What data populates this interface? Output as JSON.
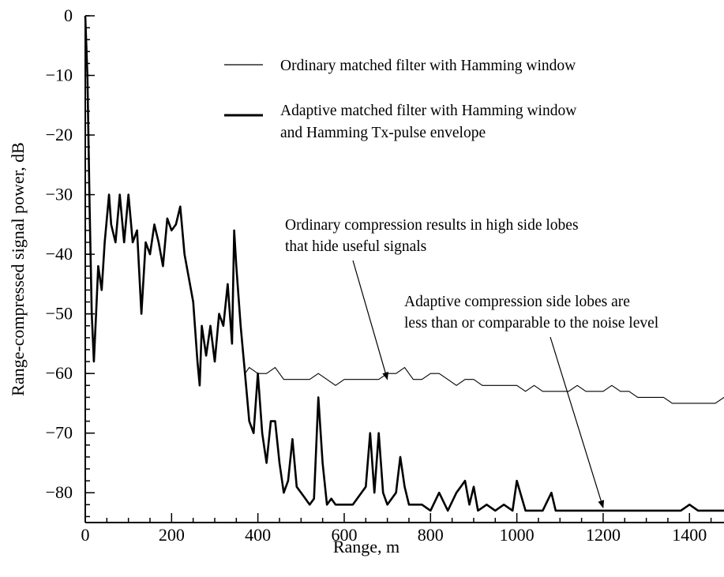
{
  "chart_data": {
    "type": "line",
    "title": "",
    "xlabel": "Range, m",
    "ylabel": "Range-compressed signal power, dB",
    "xlim": [
      0,
      1480
    ],
    "ylim": [
      -85,
      0
    ],
    "x_ticks": [
      0,
      200,
      400,
      600,
      800,
      1000,
      1200,
      1400
    ],
    "x_tick_labels": [
      "0",
      "200",
      "400",
      "600",
      "800",
      "1000",
      "1200",
      "1400"
    ],
    "y_ticks": [
      0,
      -10,
      -20,
      -30,
      -40,
      -50,
      -60,
      -70,
      -80
    ],
    "y_tick_labels": [
      "0",
      "−10",
      "−20",
      "−30",
      "−40",
      "−50",
      "−60",
      "−70",
      "−80"
    ],
    "grid": false,
    "legend_position": "top-right",
    "series": [
      {
        "name": "Ordinary matched filter with Hamming window",
        "style": "thin",
        "x": [
          0,
          5,
          10,
          15,
          20,
          25,
          30,
          38,
          45,
          55,
          60,
          70,
          80,
          90,
          100,
          110,
          120,
          130,
          140,
          150,
          160,
          170,
          180,
          190,
          200,
          210,
          220,
          230,
          240,
          250,
          260,
          265,
          270,
          280,
          290,
          300,
          310,
          320,
          330,
          340,
          345,
          350,
          360,
          370,
          380,
          400,
          420,
          440,
          460,
          480,
          500,
          520,
          540,
          560,
          580,
          600,
          620,
          640,
          660,
          680,
          700,
          720,
          740,
          760,
          780,
          800,
          820,
          840,
          860,
          880,
          900,
          920,
          940,
          960,
          980,
          1000,
          1020,
          1040,
          1060,
          1080,
          1100,
          1120,
          1140,
          1160,
          1180,
          1200,
          1220,
          1240,
          1260,
          1280,
          1300,
          1320,
          1340,
          1360,
          1380,
          1400,
          1420,
          1440,
          1460,
          1480
        ],
        "values": [
          0,
          -10,
          -32,
          -50,
          -58,
          -50,
          -42,
          -46,
          -38,
          -30,
          -35,
          -38,
          -30,
          -38,
          -30,
          -38,
          -36,
          -50,
          -38,
          -40,
          -35,
          -38,
          -42,
          -34,
          -36,
          -35,
          -32,
          -40,
          -44,
          -48,
          -58,
          -62,
          -52,
          -57,
          -52,
          -58,
          -50,
          -52,
          -45,
          -55,
          -36,
          -42,
          -52,
          -60,
          -59,
          -60,
          -60,
          -59,
          -61,
          -61,
          -61,
          -61,
          -60,
          -61,
          -62,
          -61,
          -61,
          -61,
          -61,
          -61,
          -60,
          -60,
          -59,
          -61,
          -61,
          -60,
          -60,
          -61,
          -62,
          -61,
          -61,
          -62,
          -62,
          -62,
          -62,
          -62,
          -63,
          -62,
          -63,
          -63,
          -63,
          -63,
          -62,
          -63,
          -63,
          -63,
          -62,
          -63,
          -63,
          -64,
          -64,
          -64,
          -64,
          -65,
          -65,
          -65,
          -65,
          -65,
          -65,
          -64
        ]
      },
      {
        "name": "Adaptive matched filter with Hamming window and Hamming Tx-pulse envelope",
        "style": "thick",
        "x": [
          0,
          5,
          10,
          15,
          20,
          25,
          30,
          38,
          45,
          55,
          60,
          70,
          80,
          90,
          100,
          110,
          120,
          130,
          140,
          150,
          160,
          170,
          180,
          190,
          200,
          210,
          220,
          230,
          240,
          250,
          260,
          265,
          270,
          280,
          290,
          300,
          310,
          320,
          330,
          340,
          345,
          350,
          360,
          370,
          380,
          390,
          400,
          410,
          420,
          430,
          440,
          450,
          460,
          470,
          480,
          490,
          500,
          510,
          520,
          530,
          540,
          550,
          560,
          570,
          580,
          600,
          620,
          640,
          650,
          660,
          670,
          680,
          690,
          700,
          720,
          730,
          740,
          750,
          760,
          780,
          800,
          820,
          840,
          860,
          870,
          880,
          890,
          900,
          910,
          930,
          950,
          970,
          990,
          1000,
          1020,
          1040,
          1060,
          1080,
          1090,
          1100,
          1120,
          1140,
          1160,
          1180,
          1200,
          1220,
          1240,
          1260,
          1280,
          1300,
          1320,
          1340,
          1360,
          1380,
          1400,
          1420,
          1440,
          1460,
          1480
        ],
        "values": [
          0,
          -10,
          -32,
          -50,
          -58,
          -50,
          -42,
          -46,
          -38,
          -30,
          -35,
          -38,
          -30,
          -38,
          -30,
          -38,
          -36,
          -50,
          -38,
          -40,
          -35,
          -38,
          -42,
          -34,
          -36,
          -35,
          -32,
          -40,
          -44,
          -48,
          -58,
          -62,
          -52,
          -57,
          -52,
          -58,
          -50,
          -52,
          -45,
          -55,
          -36,
          -42,
          -52,
          -60,
          -68,
          -70,
          -60,
          -70,
          -75,
          -68,
          -68,
          -75,
          -80,
          -78,
          -71,
          -79,
          -80,
          -81,
          -82,
          -81,
          -64,
          -75,
          -82,
          -81,
          -82,
          -82,
          -82,
          -80,
          -79,
          -70,
          -80,
          -70,
          -80,
          -82,
          -80,
          -74,
          -79,
          -82,
          -82,
          -82,
          -83,
          -80,
          -83,
          -80,
          -79,
          -78,
          -82,
          -79,
          -83,
          -82,
          -83,
          -82,
          -83,
          -78,
          -83,
          -83,
          -83,
          -80,
          -83,
          -83,
          -83,
          -83,
          -83,
          -83,
          -83,
          -83,
          -83,
          -83,
          -83,
          -83,
          -83,
          -83,
          -83,
          -83,
          -82,
          -83,
          -83,
          -83,
          -83
        ]
      }
    ],
    "annotations": [
      {
        "lines": [
          "Ordinary compression results in high side lobes",
          "that hide useful signals"
        ],
        "arrow_to": [
          700,
          -61
        ]
      },
      {
        "lines": [
          "Adaptive compression side lobes are",
          "less than or  comparable to the noise level"
        ],
        "arrow_to": [
          1200,
          -82.5
        ]
      }
    ],
    "legend": [
      {
        "series": 0,
        "lines": [
          "Ordinary matched filter with Hamming window"
        ]
      },
      {
        "series": 1,
        "lines": [
          "Adaptive matched filter with Hamming window",
          "and Hamming Tx-pulse envelope"
        ]
      }
    ]
  }
}
